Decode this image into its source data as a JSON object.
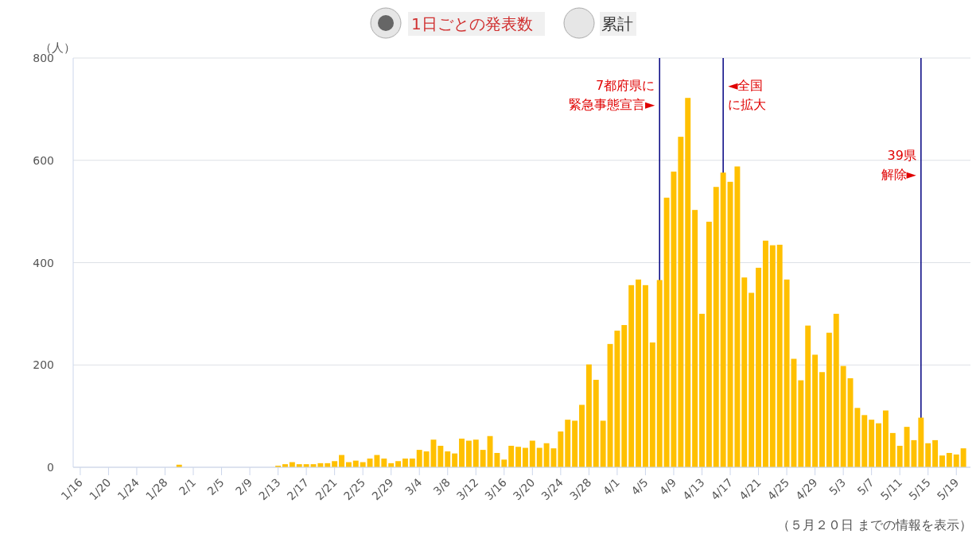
{
  "chart_data": {
    "type": "bar",
    "ylabel": "（人）",
    "color": "#ffc000",
    "x": [
      "--01-16",
      "--01-17",
      "--01-18",
      "--01-19",
      "--01-20",
      "--01-21",
      "--01-22",
      "--01-23",
      "--01-24",
      "--01-25",
      "--01-26",
      "--01-27",
      "--01-28",
      "--01-29",
      "--01-30",
      "--01-31",
      "--02-01",
      "--02-02",
      "--02-03",
      "--02-04",
      "--02-05",
      "--02-06",
      "--02-07",
      "--02-08",
      "--02-09",
      "--02-10",
      "--02-11",
      "--02-12",
      "--02-13",
      "--02-14",
      "--02-15",
      "--02-16",
      "--02-17",
      "--02-18",
      "--02-19",
      "--02-20",
      "--02-21",
      "--02-22",
      "--02-23",
      "--02-24",
      "--02-25",
      "--02-26",
      "--02-27",
      "--02-28",
      "--02-29",
      "--03-01",
      "--03-02",
      "--03-03",
      "--03-04",
      "--03-05",
      "--03-06",
      "--03-07",
      "--03-08",
      "--03-09",
      "--03-10",
      "--03-11",
      "--03-12",
      "--03-13",
      "--03-14",
      "--03-15",
      "--03-16",
      "--03-17",
      "--03-18",
      "--03-19",
      "--03-20",
      "--03-21",
      "--03-22",
      "--03-23",
      "--03-24",
      "--03-25",
      "--03-26",
      "--03-27",
      "--03-28",
      "--03-29",
      "--03-30",
      "--03-31",
      "--04-01",
      "--04-02",
      "--04-03",
      "--04-04",
      "--04-05",
      "--04-06",
      "--04-07",
      "--04-08",
      "--04-09",
      "--04-10",
      "--04-11",
      "--04-12",
      "--04-13",
      "--04-14",
      "--04-15",
      "--04-16",
      "--04-17",
      "--04-18",
      "--04-19",
      "--04-20",
      "--04-21",
      "--04-22",
      "--04-23",
      "--04-24",
      "--04-25",
      "--04-26",
      "--04-27",
      "--04-28",
      "--04-29",
      "--04-30",
      "--05-01",
      "--05-02",
      "--05-03",
      "--05-04",
      "--05-05",
      "--05-06",
      "--05-07",
      "--05-08",
      "--05-09",
      "--05-10",
      "--05-11",
      "--05-12",
      "--05-13",
      "--05-14",
      "--05-15",
      "--05-16",
      "--05-17",
      "--05-18",
      "--05-19",
      "--05-20"
    ],
    "values": [
      0,
      0,
      0,
      0,
      0,
      0,
      0,
      0,
      0,
      0,
      0,
      0,
      0,
      0,
      5,
      0,
      0,
      0,
      0,
      0,
      0,
      0,
      0,
      0,
      0,
      0,
      0,
      0,
      3,
      6,
      10,
      6,
      6,
      6,
      8,
      8,
      12,
      24,
      10,
      13,
      10,
      17,
      24,
      17,
      8,
      12,
      17,
      17,
      34,
      31,
      54,
      42,
      31,
      27,
      56,
      52,
      54,
      34,
      61,
      28,
      15,
      42,
      40,
      38,
      52,
      38,
      47,
      37,
      70,
      93,
      91,
      122,
      201,
      171,
      91,
      241,
      267,
      278,
      356,
      367,
      356,
      244,
      366,
      527,
      578,
      646,
      722,
      503,
      300,
      480,
      548,
      576,
      558,
      588,
      371,
      341,
      390,
      443,
      434,
      435,
      367,
      212,
      170,
      277,
      220,
      186,
      263,
      300,
      198,
      174,
      116,
      102,
      93,
      86,
      111,
      67,
      42,
      79,
      53,
      97,
      47,
      53,
      23,
      28,
      25,
      37
    ],
    "xlim": [
      "--01-15",
      "--05-21"
    ],
    "xticks": [
      {
        "value": "--01-16",
        "label": "1/16"
      },
      {
        "value": "--01-20",
        "label": "1/20"
      },
      {
        "value": "--01-24",
        "label": "1/24"
      },
      {
        "value": "--01-28",
        "label": "1/28"
      },
      {
        "value": "--02-01",
        "label": "2/1"
      },
      {
        "value": "--02-05",
        "label": "2/5"
      },
      {
        "value": "--02-09",
        "label": "2/9"
      },
      {
        "value": "--02-13",
        "label": "2/13"
      },
      {
        "value": "--02-17",
        "label": "2/17"
      },
      {
        "value": "--02-21",
        "label": "2/21"
      },
      {
        "value": "--02-25",
        "label": "2/25"
      },
      {
        "value": "--02-29",
        "label": "2/29"
      },
      {
        "value": "--03-04",
        "label": "3/4"
      },
      {
        "value": "--03-08",
        "label": "3/8"
      },
      {
        "value": "--03-12",
        "label": "3/12"
      },
      {
        "value": "--03-16",
        "label": "3/16"
      },
      {
        "value": "--03-20",
        "label": "3/20"
      },
      {
        "value": "--03-24",
        "label": "3/24"
      },
      {
        "value": "--03-28",
        "label": "3/28"
      },
      {
        "value": "--04-01",
        "label": "4/1"
      },
      {
        "value": "--04-05",
        "label": "4/5"
      },
      {
        "value": "--04-09",
        "label": "4/9"
      },
      {
        "value": "--04-13",
        "label": "4/13"
      },
      {
        "value": "--04-17",
        "label": "4/17"
      },
      {
        "value": "--04-21",
        "label": "4/21"
      },
      {
        "value": "--04-25",
        "label": "4/25"
      },
      {
        "value": "--04-29",
        "label": "4/29"
      },
      {
        "value": "--05-03",
        "label": "5/3"
      },
      {
        "value": "--05-07",
        "label": "5/7"
      },
      {
        "value": "--05-11",
        "label": "5/11"
      },
      {
        "value": "--05-15",
        "label": "5/15"
      },
      {
        "value": "--05-19",
        "label": "5/19"
      }
    ],
    "ylim": [
      0,
      800
    ],
    "yticks": [
      0,
      200,
      400,
      600,
      800
    ],
    "grid": "y",
    "ref_lines": [
      {
        "axis": "x",
        "value": "--04-07",
        "label": "7都府県に緊急事態宣言►",
        "color": "#000080"
      },
      {
        "axis": "x",
        "value": "--04-16",
        "label": "◄全国に拡大",
        "color": "#000080"
      },
      {
        "axis": "x",
        "value": "--05-14",
        "label": "39県解除►",
        "color": "#000080"
      }
    ],
    "annotations": [
      "1日ごとの発表数",
      "累計",
      "（５月２０日 までの情報を表示）"
    ]
  }
}
